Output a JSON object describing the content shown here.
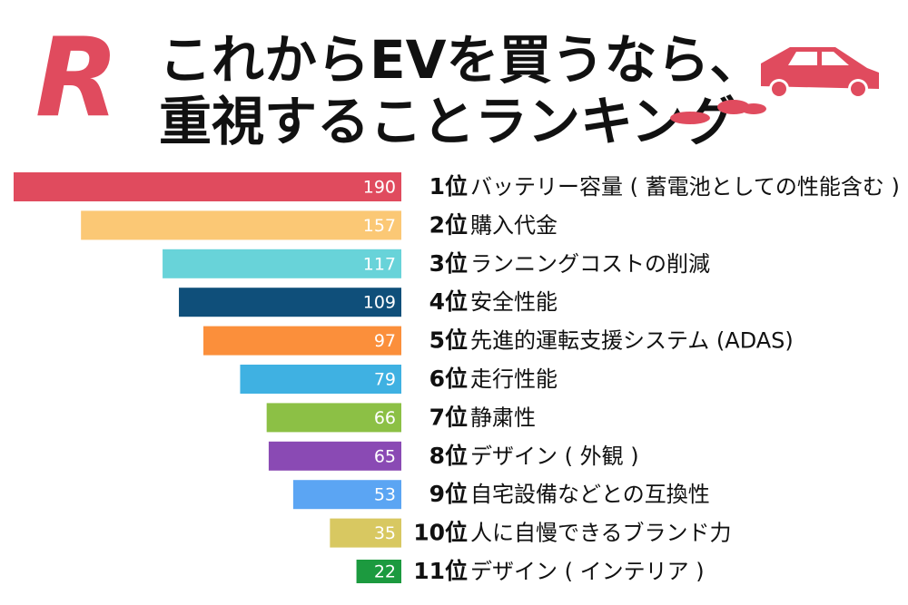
{
  "logo": "R",
  "chart_data": {
    "type": "hbar-left",
    "title_lines": [
      "これからEVを買うなら、",
      "重視することランキング"
    ],
    "ranks": [
      "1位",
      "2位",
      "3位",
      "4位",
      "5位",
      "6位",
      "7位",
      "8位",
      "9位",
      "10位",
      "11位"
    ],
    "categories": [
      "バッテリー容量 ( 蓄電池としての性能含む )",
      "購入代金",
      "ランニングコストの削減",
      "安全性能",
      "先進的運転支援システム (ADAS)",
      "走行性能",
      "静粛性",
      "デザイン ( 外観 )",
      "自宅設備などとの互換性",
      "人に自慢できるブランド力",
      "デザイン ( インテリア )"
    ],
    "values": [
      190,
      157,
      117,
      109,
      97,
      79,
      66,
      65,
      53,
      35,
      22
    ],
    "colors": [
      "#e04b5e",
      "#fbc875",
      "#68d3d9",
      "#0f4f7a",
      "#fb8f3b",
      "#3fb1e2",
      "#8cc045",
      "#8a4ab4",
      "#5ba5f3",
      "#d8c861",
      "#1c9a3f"
    ],
    "xlim": [
      0,
      190
    ]
  }
}
